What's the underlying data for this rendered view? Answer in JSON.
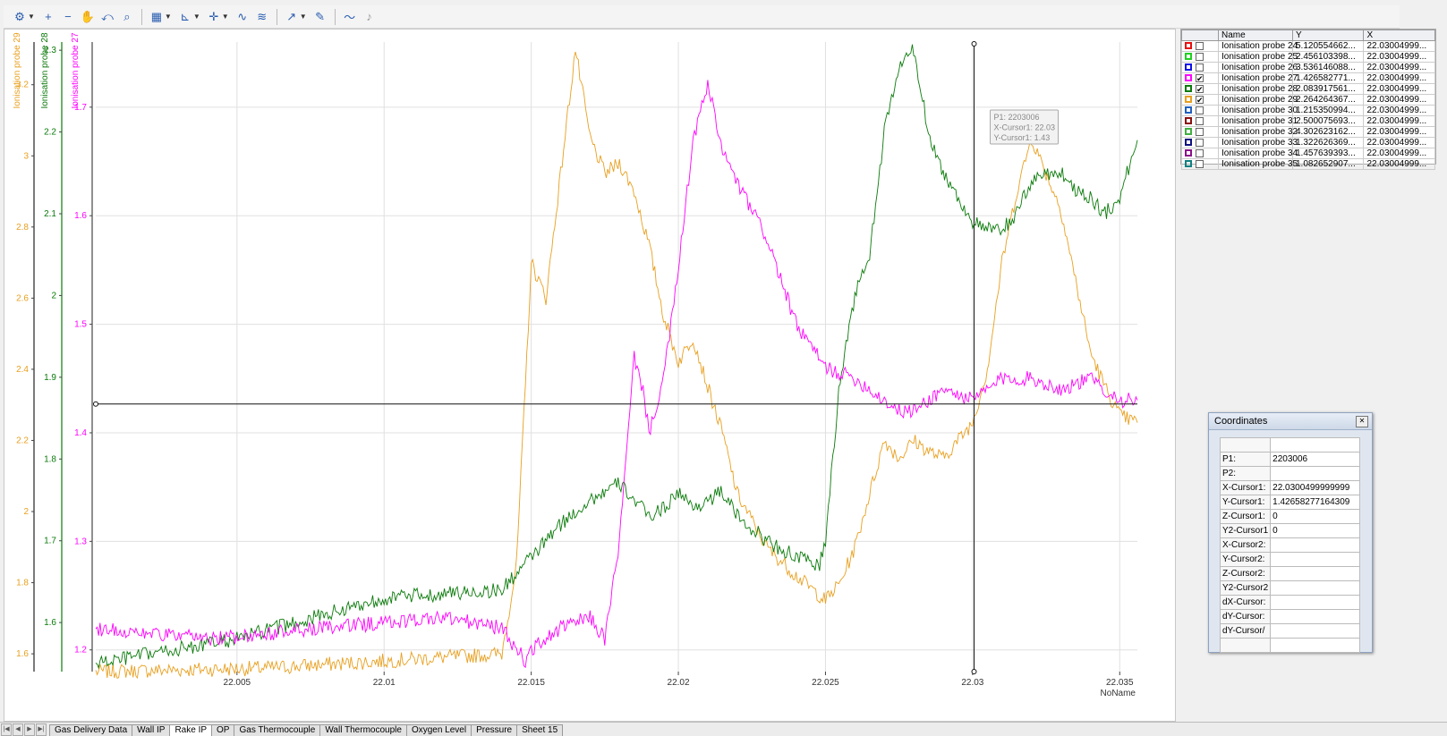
{
  "toolbar": {
    "icons": [
      "axis-settings-icon",
      "zoom-in-icon",
      "zoom-out-icon",
      "pan-hand-icon",
      "zoom-reset-icon",
      "zoom-area-icon",
      "chart-options-icon",
      "axis-scale-icon",
      "cursor-cross-icon",
      "curve-fit-icon",
      "curve-fit-2-icon",
      "signal-trace-icon",
      "signal-edit-icon",
      "wave-icon",
      "sound-mute-icon"
    ]
  },
  "chart_data": {
    "type": "line",
    "xlabel": "NoName",
    "x_range": [
      22.0002,
      22.0356
    ],
    "x_ticks": [
      22.005,
      22.01,
      22.015,
      22.02,
      22.025,
      22.03,
      22.035
    ],
    "x_tick_labels": [
      "22.005",
      "22.01",
      "22.015",
      "22.02",
      "22.025",
      "22.03",
      "22.035"
    ],
    "grid": true,
    "axes": [
      {
        "name": "Ionisation probe 29",
        "color": "#e8a020",
        "range": [
          1.55,
          3.32
        ],
        "ticks": [
          "1.6",
          "1.8",
          "2",
          "2.2",
          "2.4",
          "2.6",
          "2.8",
          "3",
          "3.2"
        ]
      },
      {
        "name": "Ionisation probe 28",
        "color": "#0a7a0a",
        "range": [
          1.54,
          2.31
        ],
        "ticks": [
          "1.6",
          "1.7",
          "1.8",
          "1.9",
          "2",
          "2.1",
          "2.2",
          "2.3"
        ]
      },
      {
        "name": "Ionisation probe 27",
        "color": "#ff00ff",
        "range": [
          1.18,
          1.76
        ],
        "ticks": [
          "1.2",
          "1.3",
          "1.4",
          "1.5",
          "1.6",
          "1.7"
        ]
      }
    ],
    "series": [
      {
        "name": "Ionisation probe 29",
        "color": "#e8a020",
        "axis": 0,
        "x": [
          22.0002,
          22.006,
          22.01,
          22.014,
          22.0145,
          22.0148,
          22.015,
          22.0155,
          22.016,
          22.0165,
          22.017,
          22.0175,
          22.018,
          22.0185,
          22.019,
          22.0195,
          22.02,
          22.0205,
          22.021,
          22.0215,
          22.022,
          22.023,
          22.024,
          22.025,
          22.0255,
          22.026,
          22.0265,
          22.027,
          22.0275,
          22.028,
          22.0285,
          22.029,
          22.03,
          22.0305,
          22.031,
          22.0315,
          22.032,
          22.0325,
          22.033,
          22.0335,
          22.034,
          22.0345,
          22.035,
          22.0356
        ],
        "y": [
          1.55,
          1.56,
          1.58,
          1.6,
          1.85,
          2.35,
          2.7,
          2.6,
          2.95,
          3.3,
          3.05,
          2.95,
          2.98,
          2.9,
          2.75,
          2.55,
          2.42,
          2.49,
          2.35,
          2.22,
          2.05,
          1.9,
          1.82,
          1.75,
          1.8,
          1.9,
          2.05,
          2.2,
          2.15,
          2.2,
          2.17,
          2.15,
          2.25,
          2.4,
          2.7,
          2.9,
          3.05,
          2.95,
          2.85,
          2.65,
          2.45,
          2.35,
          2.27,
          2.25
        ]
      },
      {
        "name": "Ionisation probe 28",
        "color": "#0a7a0a",
        "axis": 1,
        "x": [
          22.0002,
          22.005,
          22.01,
          22.014,
          22.015,
          22.016,
          22.017,
          22.018,
          22.0185,
          22.019,
          22.0195,
          22.02,
          22.0205,
          22.021,
          22.0215,
          22.022,
          22.023,
          22.024,
          22.0248,
          22.025,
          22.0255,
          22.026,
          22.0265,
          22.027,
          22.0275,
          22.028,
          22.0285,
          22.029,
          22.03,
          22.0305,
          22.031,
          22.0315,
          22.032,
          22.0325,
          22.033,
          22.0335,
          22.034,
          22.0345,
          22.035,
          22.0356
        ],
        "y": [
          1.55,
          1.58,
          1.63,
          1.64,
          1.68,
          1.72,
          1.75,
          1.77,
          1.75,
          1.73,
          1.74,
          1.76,
          1.74,
          1.75,
          1.76,
          1.73,
          1.7,
          1.68,
          1.67,
          1.7,
          1.9,
          2.0,
          2.05,
          2.2,
          2.28,
          2.3,
          2.2,
          2.15,
          2.09,
          2.08,
          2.08,
          2.1,
          2.14,
          2.15,
          2.15,
          2.13,
          2.12,
          2.1,
          2.12,
          2.19
        ]
      },
      {
        "name": "Ionisation probe 27",
        "color": "#ff00ff",
        "axis": 2,
        "x": [
          22.0002,
          22.004,
          22.008,
          22.012,
          22.014,
          22.0148,
          22.015,
          22.016,
          22.017,
          22.0175,
          22.018,
          22.0185,
          22.0188,
          22.019,
          22.0195,
          22.02,
          22.0205,
          22.021,
          22.0215,
          22.022,
          22.023,
          22.024,
          22.025,
          22.026,
          22.027,
          22.0275,
          22.028,
          22.029,
          22.03,
          22.031,
          22.032,
          22.033,
          22.034,
          22.035,
          22.0356
        ],
        "y": [
          1.22,
          1.21,
          1.22,
          1.23,
          1.22,
          1.19,
          1.2,
          1.22,
          1.23,
          1.21,
          1.3,
          1.47,
          1.44,
          1.4,
          1.45,
          1.55,
          1.67,
          1.72,
          1.66,
          1.63,
          1.58,
          1.5,
          1.46,
          1.45,
          1.43,
          1.42,
          1.42,
          1.44,
          1.43,
          1.45,
          1.45,
          1.44,
          1.45,
          1.43,
          1.43
        ]
      }
    ],
    "cursor": {
      "x": 22.0300499999999,
      "y": 1.42658277164309
    },
    "tooltip": [
      "P1: 2203006",
      "X-Cursor1: 22.03",
      "Y-Cursor1: 1.43"
    ]
  },
  "legend": {
    "headers": [
      "Name",
      "Y",
      "X"
    ],
    "rows": [
      {
        "name": "Ionisation probe 24",
        "y": "5.120554662...",
        "x": "22.03004999...",
        "color": "#e81010",
        "checked": false
      },
      {
        "name": "Ionisation probe 25",
        "y": "2.456103398...",
        "x": "22.03004999...",
        "color": "#20d020",
        "checked": false
      },
      {
        "name": "Ionisation probe 26",
        "y": "3.536146088...",
        "x": "22.03004999...",
        "color": "#1010e8",
        "checked": false
      },
      {
        "name": "Ionisation probe 27",
        "y": "1.426582771...",
        "x": "22.03004999...",
        "color": "#ff00ff",
        "checked": true
      },
      {
        "name": "Ionisation probe 28",
        "y": "2.083917561...",
        "x": "22.03004999...",
        "color": "#0a7a0a",
        "checked": true
      },
      {
        "name": "Ionisation probe 29",
        "y": "2.264264367...",
        "x": "22.03004999...",
        "color": "#e8a020",
        "checked": true
      },
      {
        "name": "Ionisation probe 30",
        "y": "1.215350994...",
        "x": "22.03004999...",
        "color": "#2060c0",
        "checked": false
      },
      {
        "name": "Ionisation probe 31",
        "y": "2.500075693...",
        "x": "22.03004999...",
        "color": "#8a1010",
        "checked": false
      },
      {
        "name": "Ionisation probe 32",
        "y": "4.302623162...",
        "x": "22.03004999...",
        "color": "#40b040",
        "checked": false
      },
      {
        "name": "Ionisation probe 33",
        "y": "1.322626369...",
        "x": "22.03004999...",
        "color": "#101080",
        "checked": false
      },
      {
        "name": "Ionisation probe 34",
        "y": "1.457639393...",
        "x": "22.03004999...",
        "color": "#8a108a",
        "checked": false
      },
      {
        "name": "Ionisation probe 35",
        "y": "1.082652907...",
        "x": "22.03004999...",
        "color": "#108080",
        "checked": false
      }
    ]
  },
  "coordinates": {
    "title": "Coordinates",
    "rows": [
      {
        "key": "P1:",
        "value": "2203006"
      },
      {
        "key": "P2:",
        "value": ""
      },
      {
        "key": "X-Cursor1:",
        "value": "22.0300499999999"
      },
      {
        "key": "Y-Cursor1:",
        "value": "1.42658277164309"
      },
      {
        "key": "Z-Cursor1:",
        "value": "0"
      },
      {
        "key": "Y2-Cursor1",
        "value": "0"
      },
      {
        "key": "X-Cursor2:",
        "value": ""
      },
      {
        "key": "Y-Cursor2:",
        "value": ""
      },
      {
        "key": "Z-Cursor2:",
        "value": ""
      },
      {
        "key": "Y2-Cursor2",
        "value": ""
      },
      {
        "key": "dX-Cursor:",
        "value": ""
      },
      {
        "key": "dY-Cursor:",
        "value": ""
      },
      {
        "key": "dY-Cursor/",
        "value": ""
      }
    ]
  },
  "tabs": {
    "items": [
      "Gas Delivery Data",
      "Wall IP",
      "Rake IP",
      "OP",
      "Gas Thermocouple",
      "Wall Thermocouple",
      "Oxygen Level",
      "Pressure",
      "Sheet 15"
    ],
    "active": 2
  }
}
